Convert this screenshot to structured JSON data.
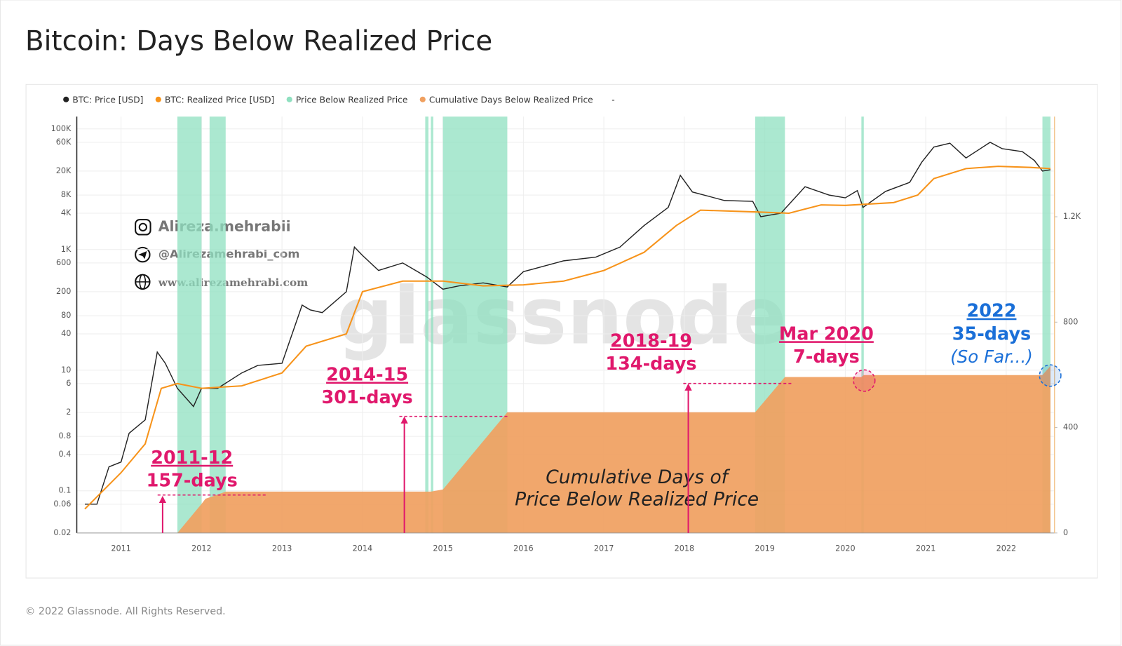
{
  "chart_data": {
    "type": "line",
    "title": "Bitcoin: Days Below Realized Price",
    "log_y": true,
    "grid": true,
    "xlim": [
      2010.45,
      2022.6
    ],
    "xticks": [
      2011,
      2012,
      2013,
      2014,
      2015,
      2016,
      2017,
      2018,
      2019,
      2020,
      2021,
      2022
    ],
    "ylim": [
      0.02,
      160000
    ],
    "yticks": [
      0.02,
      0.06,
      0.1,
      0.4,
      0.8,
      2,
      6,
      10,
      40,
      80,
      200,
      600,
      {
        "value": 1000,
        "label": "1K"
      },
      {
        "value": 4000,
        "label": "4K"
      },
      {
        "value": 8000,
        "label": "8K"
      },
      {
        "value": 20000,
        "label": "20K"
      },
      {
        "value": 60000,
        "label": "60K"
      },
      {
        "value": 100000,
        "label": "100K"
      }
    ],
    "y2lim": [
      0,
      1580
    ],
    "y2ticks": [
      0,
      400,
      800,
      {
        "value": 1200,
        "label": "1.2K"
      }
    ],
    "legend_trailer": "-",
    "series": [
      {
        "name": "BTC: Price [USD]",
        "color": "#222222",
        "x": [
          2010.55,
          2010.7,
          2010.85,
          2011.0,
          2011.1,
          2011.3,
          2011.45,
          2011.55,
          2011.7,
          2011.9,
          2012.0,
          2012.2,
          2012.5,
          2012.7,
          2013.0,
          2013.25,
          2013.35,
          2013.5,
          2013.8,
          2013.9,
          2014.0,
          2014.2,
          2014.5,
          2014.8,
          2015.0,
          2015.2,
          2015.5,
          2015.8,
          2016.0,
          2016.5,
          2016.9,
          2017.2,
          2017.5,
          2017.8,
          2017.95,
          2018.1,
          2018.5,
          2018.85,
          2018.95,
          2019.2,
          2019.5,
          2019.8,
          2020.0,
          2020.15,
          2020.22,
          2020.5,
          2020.8,
          2020.95,
          2021.1,
          2021.3,
          2021.5,
          2021.8,
          2021.95,
          2022.2,
          2022.35,
          2022.45,
          2022.55
        ],
        "values": [
          0.06,
          0.06,
          0.25,
          0.3,
          0.9,
          1.5,
          20,
          13,
          5,
          2.5,
          5,
          5,
          9,
          12,
          13,
          120,
          100,
          90,
          200,
          1100,
          800,
          450,
          600,
          350,
          220,
          250,
          280,
          240,
          430,
          650,
          750,
          1100,
          2500,
          5000,
          17000,
          9000,
          6500,
          6300,
          3500,
          4000,
          11000,
          8000,
          7200,
          9500,
          5000,
          9200,
          13000,
          28000,
          50000,
          58000,
          33000,
          60000,
          47000,
          42000,
          30000,
          20000,
          21000
        ]
      },
      {
        "name": "BTC: Realized Price [USD]",
        "color": "#f7931a",
        "x": [
          2010.55,
          2011.0,
          2011.3,
          2011.5,
          2011.7,
          2012.0,
          2012.5,
          2013.0,
          2013.3,
          2013.8,
          2014.0,
          2014.5,
          2015.0,
          2015.5,
          2016.0,
          2016.5,
          2017.0,
          2017.5,
          2017.9,
          2018.2,
          2018.9,
          2019.3,
          2019.7,
          2020.0,
          2020.6,
          2020.9,
          2021.1,
          2021.5,
          2021.9,
          2022.3,
          2022.55
        ],
        "values": [
          0.05,
          0.2,
          0.6,
          5,
          6,
          5,
          5.5,
          9,
          25,
          40,
          200,
          300,
          300,
          250,
          260,
          300,
          450,
          900,
          2500,
          4500,
          4200,
          4000,
          5500,
          5400,
          6000,
          8000,
          15000,
          22000,
          24000,
          23000,
          22000
        ]
      },
      {
        "name": "Price Below Realized Price",
        "color": "#8fe0c0",
        "x_ranges": [
          [
            2011.7,
            2012.0
          ],
          [
            2012.1,
            2012.3
          ],
          [
            2014.78,
            2014.82
          ],
          [
            2014.85,
            2014.88
          ],
          [
            2015.0,
            2015.8
          ],
          [
            2018.88,
            2019.25
          ],
          [
            2020.2,
            2020.23
          ],
          [
            2022.45,
            2022.55
          ]
        ]
      },
      {
        "name": "Cumulative Days Below Realized Price",
        "color": "#f0a060",
        "axis": "y2",
        "x": [
          2011.7,
          2012.0,
          2012.05,
          2012.15,
          2012.3,
          2014.85,
          2015.0,
          2015.8,
          2018.88,
          2019.25,
          2020.2,
          2020.23,
          2022.45,
          2022.55
        ],
        "values": [
          0,
          110,
          130,
          140,
          157,
          157,
          165,
          458,
          458,
          592,
          592,
          599,
          599,
          634
        ]
      }
    ],
    "annotations": [
      {
        "period": "2011-12",
        "days": "157-days"
      },
      {
        "period": "2014-15",
        "days": "301-days"
      },
      {
        "period": "2018-19",
        "days": "134-days"
      },
      {
        "period": "Mar 2020",
        "days": "7-days"
      },
      {
        "period": "2022",
        "days": "35-days",
        "note": "(So Far...)"
      }
    ],
    "center_label": [
      "Cumulative Days of",
      "Price Below Realized Price"
    ],
    "watermark": "glassnode"
  },
  "author": {
    "instagram": "Alireza.mehrabii",
    "telegram": "@Alirezamehrabi_com",
    "website": "www.alirezamehrabi.com"
  },
  "footer": "© 2022 Glassnode. All Rights Reserved."
}
